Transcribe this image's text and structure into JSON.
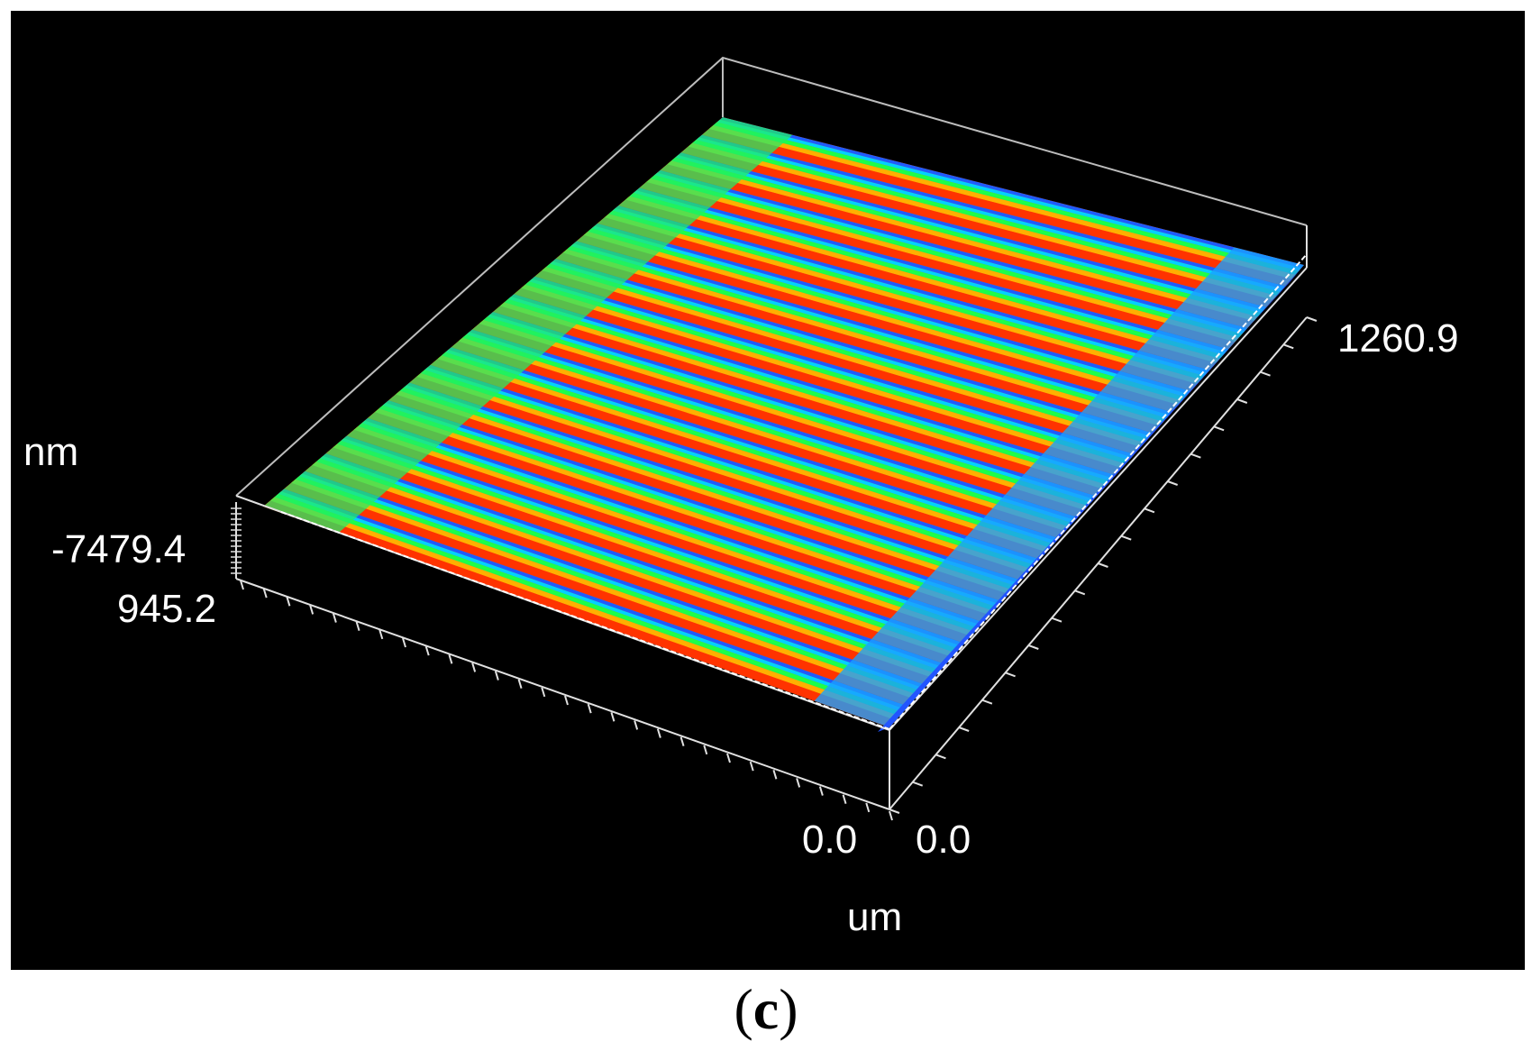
{
  "figure": {
    "z_unit": "nm",
    "xy_unit": "um",
    "z_min_label": "-7479.4",
    "x_max_label": "945.2",
    "y_max_label": "1260.9",
    "x_origin_label": "0.0",
    "y_origin_label": "0.0",
    "caption_open": "(",
    "caption_letter": "c",
    "caption_close": ")",
    "colormap": [
      "#0044ff",
      "#00ccff",
      "#00ff44",
      "#ffcc00",
      "#ff2200"
    ],
    "background_color": "#000000",
    "frame_color": "#cccccc"
  }
}
